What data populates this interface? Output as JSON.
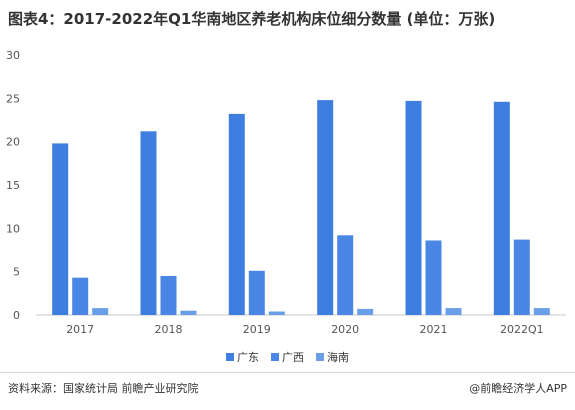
{
  "title": "图表4：2017-2022年Q1华南地区养老机构床位细分数量 (单位：万张)",
  "chart_data": {
    "type": "bar",
    "categories": [
      "2017",
      "2018",
      "2019",
      "2020",
      "2021",
      "2022Q1"
    ],
    "series": [
      {
        "name": "广东",
        "values": [
          19.8,
          21.2,
          23.2,
          24.8,
          24.7,
          24.6
        ],
        "color": "#3d7ee0"
      },
      {
        "name": "广西",
        "values": [
          4.3,
          4.5,
          5.1,
          9.2,
          8.6,
          8.7
        ],
        "color": "#4a86e3"
      },
      {
        "name": "海南",
        "values": [
          0.8,
          0.5,
          0.4,
          0.7,
          0.8,
          0.8
        ],
        "color": "#6a9fe8"
      }
    ],
    "ylim": [
      0,
      30
    ],
    "yticks": [
      "0",
      "5",
      "10",
      "15",
      "20",
      "25",
      "30"
    ],
    "grid": false,
    "legend": "bottom"
  },
  "footer": {
    "source": "资料来源：国家统计局 前瞻产业研究院",
    "brand": "@前瞻经济学人APP"
  }
}
